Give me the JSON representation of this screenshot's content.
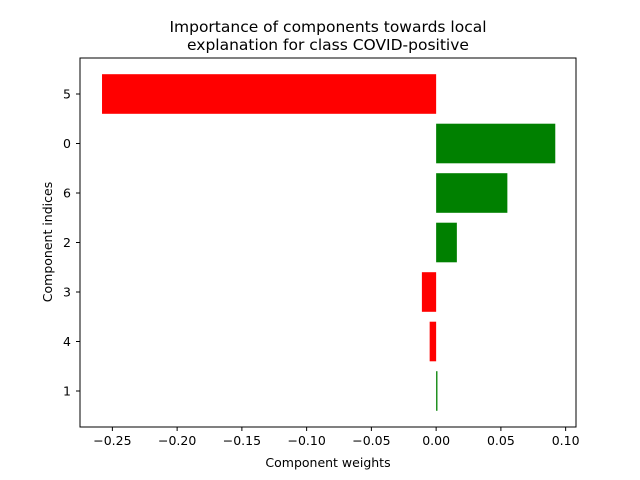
{
  "chart_data": {
    "type": "bar",
    "orientation": "horizontal",
    "title_lines": [
      "Importance of components towards local",
      "explanation for class COVID-positive"
    ],
    "xlabel": "Component weights",
    "ylabel": "Component indices",
    "categories": [
      "5",
      "0",
      "6",
      "2",
      "3",
      "4",
      "1"
    ],
    "values": [
      -0.258,
      0.092,
      0.055,
      0.016,
      -0.011,
      -0.005,
      0.001
    ],
    "xlim": [
      -0.275,
      0.108
    ],
    "xticks": [
      -0.25,
      -0.2,
      -0.15,
      -0.1,
      -0.05,
      0.0,
      0.05,
      0.1
    ],
    "xtick_labels": [
      "−0.25",
      "−0.20",
      "−0.15",
      "−0.10",
      "−0.05",
      "0.00",
      "0.05",
      "0.10"
    ],
    "grid": false,
    "colors": {
      "positive": "#008000",
      "negative": "#ff0000"
    }
  }
}
